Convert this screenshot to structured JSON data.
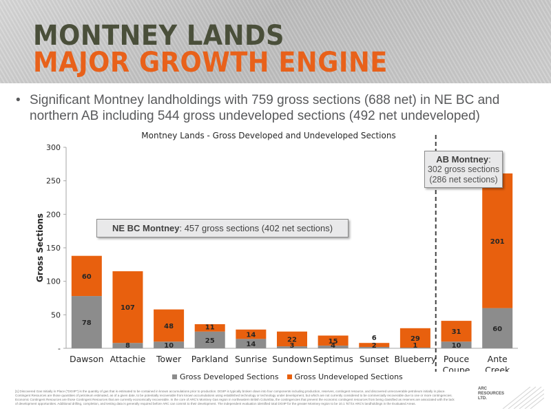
{
  "header": {
    "title_line1": "MONTNEY LANDS",
    "title_line2": "MAJOR GROWTH ENGINE"
  },
  "bullet": {
    "symbol": "•",
    "text": "Significant Montney landholdings with 759 gross sections (688 net) in NE BC and northern AB including 544 gross undeveloped sections (492 net undeveloped)"
  },
  "chart_data": {
    "type": "bar",
    "stacked": true,
    "title": "Montney Lands - Gross Developed and Undeveloped Sections",
    "xlabel": "",
    "ylabel": "Gross Sections",
    "ylim": [
      0,
      300
    ],
    "yticks": [
      0,
      50,
      100,
      150,
      200,
      250,
      300
    ],
    "ytick_labels": [
      "-",
      "50",
      "100",
      "150",
      "200",
      "250",
      "300"
    ],
    "grid": false,
    "categories": [
      [
        "Dawson"
      ],
      [
        "Attachie"
      ],
      [
        "Tower"
      ],
      [
        "Parkland"
      ],
      [
        "Sunrise"
      ],
      [
        "Sundown"
      ],
      [
        "Septimus"
      ],
      [
        "Sunset"
      ],
      [
        "Blueberry"
      ],
      [
        "Pouce",
        "Coupe"
      ],
      [
        "Ante",
        "Creek"
      ]
    ],
    "series": [
      {
        "name": "Gross Developed Sections",
        "color": "#8c8c8c",
        "values": [
          78,
          8,
          10,
          25,
          14,
          3,
          4,
          2,
          1,
          10,
          60
        ]
      },
      {
        "name": "Gross Undeveloped Sections",
        "color": "#e8600e",
        "values": [
          60,
          107,
          48,
          11,
          14,
          22,
          15,
          6,
          29,
          31,
          201
        ]
      }
    ],
    "legend_position": "bottom",
    "divider_after_category": "Blueberry"
  },
  "annotations": {
    "nebc_label": "NE BC Montney",
    "nebc_text": ":  457 gross sections (402 net sections)",
    "ab_title": "AB Montney",
    "ab_colon": ":",
    "ab_line1": "302 gross sections",
    "ab_line2": "(286 net sections)"
  },
  "footnote": "[1] Discovered Gas Initially in Place (\"DGIIP\") is the quantity of gas that is estimated to be contained in known accumulations prior to production. DGIIP is typically broken down into four components including production, reserves, contingent resource, and discovered unrecoverable petroleum initially in place. Contingent Resources are those quantities of petroleum estimated, as of a given date, to be potentially recoverable from known accumulations using established technology or technology under development, but which are not currently considered to be commercially recoverable due to one or more contingencies. Economic Contingent Resources are those Contingent Resources that are currently economically recoverable. In the core of ARC's Montney Gas region in northeastern British Columbia, the contingencies that prevent the economic contingent resources from being classified as reserves are associated with the lack of development opportunities. Additional drilling, completion, and testing data is generally required before ARC can commit to their development. The independent evaluation identified total DGIIP for the greater Montney region to be 10.1 Tcf for ARC's landholdings in the Evaluated Areas.",
  "logo": {
    "text": "ARC RESOURCES LTD."
  },
  "colors": {
    "accent": "#e8611a",
    "title_dark": "#4a4f3a",
    "developed": "#8c8c8c",
    "undeveloped": "#e8600e"
  }
}
